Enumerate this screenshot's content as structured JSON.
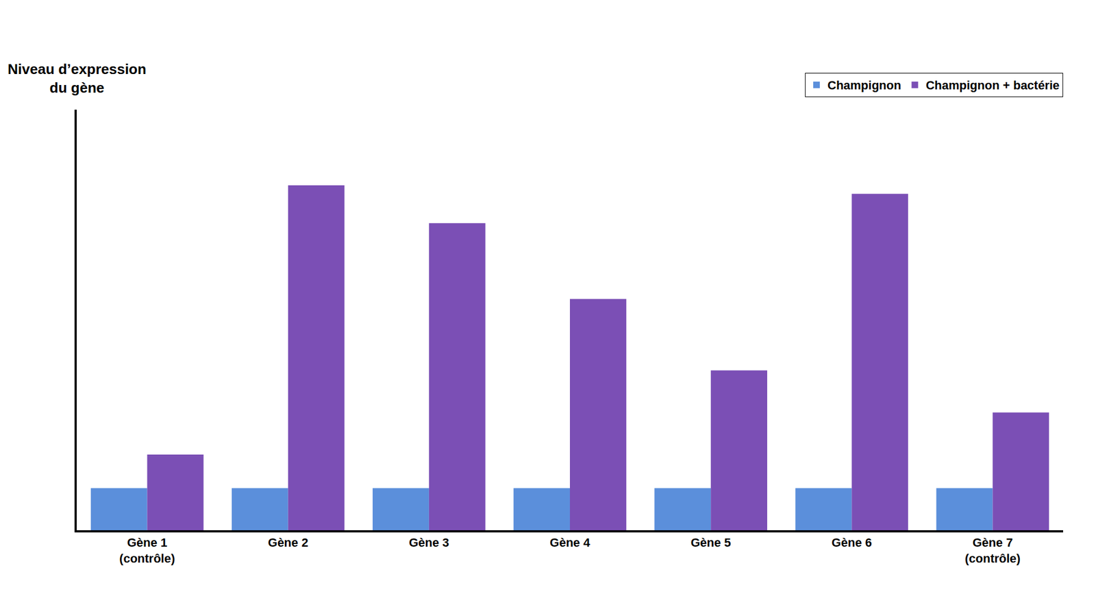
{
  "chart_data": {
    "type": "bar",
    "ylabel": "Niveau d’expression\ndu gène",
    "categories": [
      "Gène 1\n(contrôle)",
      "Gène 2",
      "Gène 3",
      "Gène 4",
      "Gène 5",
      "Gène 6",
      "Gène 7\n(contrôle)"
    ],
    "series": [
      {
        "name": "Champignon",
        "color": "#5b8fdb",
        "values": [
          0.1,
          0.1,
          0.1,
          0.1,
          0.1,
          0.1,
          0.1
        ]
      },
      {
        "name": "Champignon + bactérie",
        "color": "#7b4fb5",
        "values": [
          0.18,
          0.82,
          0.73,
          0.55,
          0.38,
          0.8,
          0.28
        ]
      }
    ],
    "ylim": [
      0,
      1.0
    ],
    "tick_labels": "x",
    "grid": false,
    "legend": "upper right"
  }
}
